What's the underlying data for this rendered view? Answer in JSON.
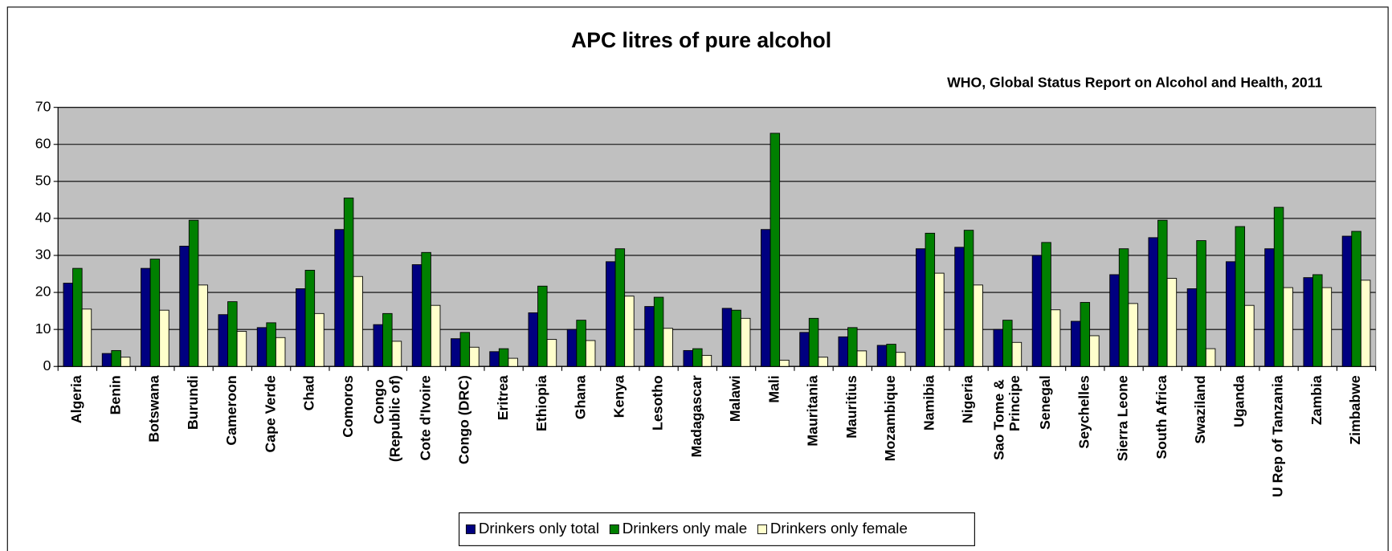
{
  "chart_data": {
    "type": "bar",
    "title": "APC litres of pure alcohol",
    "subtitle": "WHO, Global Status Report on Alcohol and Health, 2011",
    "categories": [
      "Algeria",
      "Benin",
      "Botswana",
      "Burundi",
      "Cameroon",
      "Cape Verde",
      "Chad",
      "Comoros",
      "Congo (Republic of)",
      "Cote d'Ivoire",
      "Congo (DRC)",
      "Eritrea",
      "Ethiopia",
      "Ghana",
      "Kenya",
      "Lesotho",
      "Madagascar",
      "Malawi",
      "Mali",
      "Mauritania",
      "Mauritius",
      "Mozambique",
      "Namibia",
      "Nigeria",
      "Sao Tome & Principe",
      "Senegal",
      "Seychelles",
      "Sierra Leone",
      "South Africa",
      "Swaziland",
      "Uganda",
      "U Rep of Tanzania",
      "Zambia",
      "Zimbabwe"
    ],
    "series": [
      {
        "name": "Drinkers only total",
        "color": "#000080",
        "values": [
          22.5,
          3.5,
          26.5,
          32.5,
          14,
          10.5,
          21,
          37,
          11.3,
          27.5,
          7.5,
          4,
          14.5,
          10,
          28.3,
          16.2,
          4.3,
          15.7,
          37,
          9.2,
          8,
          5.7,
          31.8,
          32.2,
          10,
          30,
          12.2,
          24.8,
          34.8,
          21,
          28.3,
          31.8,
          24,
          35.2
        ]
      },
      {
        "name": "Drinkers only male",
        "color": "#008000",
        "values": [
          26.5,
          4.3,
          29,
          39.5,
          17.5,
          11.8,
          26,
          45.5,
          14.3,
          30.8,
          9.2,
          4.8,
          21.7,
          12.5,
          31.8,
          18.7,
          4.8,
          15.2,
          63,
          13,
          10.5,
          6,
          36,
          36.8,
          12.5,
          33.5,
          17.3,
          31.8,
          39.5,
          34,
          37.8,
          43,
          24.8,
          36.5
        ]
      },
      {
        "name": "Drinkers only female",
        "color": "#ffffcc",
        "values": [
          15.5,
          2.5,
          15.2,
          22,
          9.5,
          7.8,
          14.3,
          24.3,
          6.8,
          16.5,
          5.2,
          2.2,
          7.3,
          7,
          19,
          10.3,
          3,
          13,
          1.7,
          2.5,
          4.2,
          3.8,
          25.2,
          22,
          6.5,
          15.3,
          8.3,
          17,
          23.8,
          4.8,
          16.5,
          21.3,
          21.3,
          23.3
        ]
      }
    ],
    "ylim": [
      0,
      70
    ],
    "yticks": [
      0,
      10,
      20,
      30,
      40,
      50,
      60,
      70
    ],
    "grid": true,
    "legend": "bottom"
  }
}
